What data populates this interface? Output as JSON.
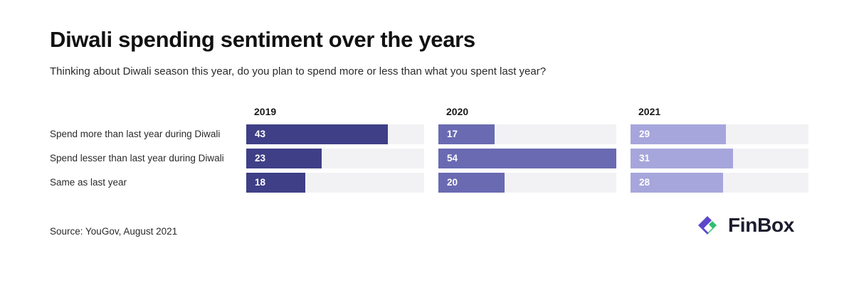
{
  "title": "Diwali spending sentiment over the years",
  "subtitle": "Thinking about Diwali season this year, do you plan to spend more or less than what you spent last year?",
  "source": "Source: YouGov, August 2021",
  "logo": {
    "text": "FinBox",
    "icon": "finbox-logo-icon"
  },
  "colors": {
    "2019": "#3f3f87",
    "2020": "#6a6ab2",
    "2021": "#a6a6dc",
    "track": "#f2f2f5",
    "logo_purple": "#5b47c9",
    "logo_green": "#2fbf71"
  },
  "chart_data": {
    "type": "bar",
    "orientation": "horizontal",
    "categories": [
      "Spend more than last year during Diwali",
      "Spend lesser than last year during Diwali",
      "Same as last year"
    ],
    "series": [
      {
        "name": "2019",
        "values": [
          43,
          23,
          18
        ]
      },
      {
        "name": "2020",
        "values": [
          17,
          54,
          20
        ]
      },
      {
        "name": "2021",
        "values": [
          29,
          31,
          28
        ]
      }
    ],
    "xlim": [
      0,
      54
    ],
    "grid": false,
    "legend": "none"
  }
}
